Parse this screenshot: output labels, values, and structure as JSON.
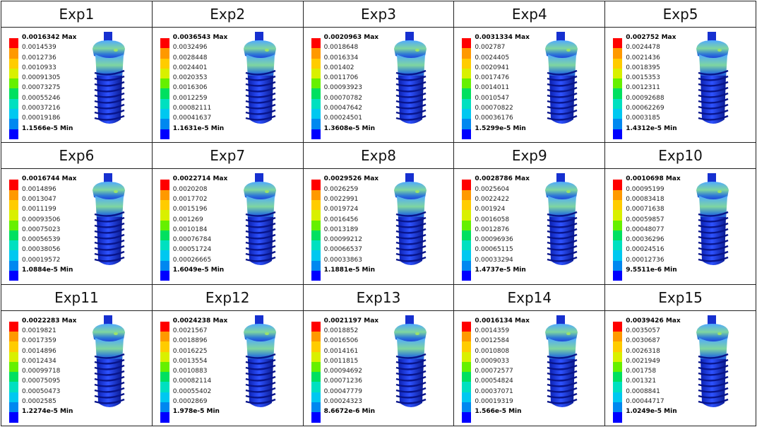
{
  "scale_colors": [
    "#ff0000",
    "#ff9900",
    "#ffcc00",
    "#d9f000",
    "#66f000",
    "#00e060",
    "#00e0c0",
    "#00c8f0",
    "#0088f0",
    "#0000ff"
  ],
  "experiments": [
    {
      "title": "Exp1",
      "max": "0.0016342 Max",
      "min": "1.1566e-5 Min",
      "levels": [
        "0.0014539",
        "0.0012736",
        "0.0010933",
        "0.00091305",
        "0.00073275",
        "0.00055246",
        "0.00037216",
        "0.00019186"
      ]
    },
    {
      "title": "Exp2",
      "max": "0.0036543 Max",
      "min": "1.1631e-5 Min",
      "levels": [
        "0.0032496",
        "0.0028448",
        "0.0024401",
        "0.0020353",
        "0.0016306",
        "0.0012259",
        "0.00082111",
        "0.00041637"
      ]
    },
    {
      "title": "Exp3",
      "max": "0.0020963 Max",
      "min": "1.3608e-5 Min",
      "levels": [
        "0.0018648",
        "0.0016334",
        "0.001402",
        "0.0011706",
        "0.00093923",
        "0.00070782",
        "0.00047642",
        "0.00024501"
      ]
    },
    {
      "title": "Exp4",
      "max": "0.0031334 Max",
      "min": "1.5299e-5 Min",
      "levels": [
        "0.002787",
        "0.0024405",
        "0.0020941",
        "0.0017476",
        "0.0014011",
        "0.0010547",
        "0.00070822",
        "0.00036176"
      ]
    },
    {
      "title": "Exp5",
      "max": "0.002752 Max",
      "min": "1.4312e-5 Min",
      "levels": [
        "0.0024478",
        "0.0021436",
        "0.0018395",
        "0.0015353",
        "0.0012311",
        "0.00092688",
        "0.00062269",
        "0.0003185"
      ]
    },
    {
      "title": "Exp6",
      "max": "0.0016744 Max",
      "min": "1.0884e-5 Min",
      "levels": [
        "0.0014896",
        "0.0013047",
        "0.0011199",
        "0.00093506",
        "0.00075023",
        "0.00056539",
        "0.00038056",
        "0.00019572"
      ]
    },
    {
      "title": "Exp7",
      "max": "0.0022714 Max",
      "min": "1.6049e-5 Min",
      "levels": [
        "0.0020208",
        "0.0017702",
        "0.0015196",
        "0.001269",
        "0.0010184",
        "0.00076784",
        "0.00051724",
        "0.00026665"
      ]
    },
    {
      "title": "Exp8",
      "max": "0.0029526 Max",
      "min": "1.1881e-5 Min",
      "levels": [
        "0.0026259",
        "0.0022991",
        "0.0019724",
        "0.0016456",
        "0.0013189",
        "0.00099212",
        "0.00066537",
        "0.00033863"
      ]
    },
    {
      "title": "Exp9",
      "max": "0.0028786 Max",
      "min": "1.4737e-5 Min",
      "levels": [
        "0.0025604",
        "0.0022422",
        "0.001924",
        "0.0016058",
        "0.0012876",
        "0.00096936",
        "0.00065115",
        "0.00033294"
      ]
    },
    {
      "title": "Exp10",
      "max": "0.0010698 Max",
      "min": "9.5511e-6 Min",
      "levels": [
        "0.00095199",
        "0.00083418",
        "0.00071638",
        "0.00059857",
        "0.00048077",
        "0.00036296",
        "0.00024516",
        "0.00012736"
      ]
    },
    {
      "title": "Exp11",
      "max": "0.0022283 Max",
      "min": "1.2274e-5 Min",
      "levels": [
        "0.0019821",
        "0.0017359",
        "0.0014896",
        "0.0012434",
        "0.00099718",
        "0.00075095",
        "0.00050473",
        "0.0002585"
      ]
    },
    {
      "title": "Exp12",
      "max": "0.0024238 Max",
      "min": "1.978e-5 Min",
      "levels": [
        "0.0021567",
        "0.0018896",
        "0.0016225",
        "0.0013554",
        "0.0010883",
        "0.00082114",
        "0.00055402",
        "0.0002869"
      ]
    },
    {
      "title": "Exp13",
      "max": "0.0021197 Max",
      "min": "8.6672e-6 Min",
      "levels": [
        "0.0018852",
        "0.0016506",
        "0.0014161",
        "0.0011815",
        "0.00094692",
        "0.00071236",
        "0.00047779",
        "0.00024323"
      ]
    },
    {
      "title": "Exp14",
      "max": "0.0016134 Max",
      "min": "1.566e-5 Min",
      "levels": [
        "0.0014359",
        "0.0012584",
        "0.0010808",
        "0.0009033",
        "0.00072577",
        "0.00054824",
        "0.00037071",
        "0.00019319"
      ]
    },
    {
      "title": "Exp15",
      "max": "0.0039426 Max",
      "min": "1.0249e-5 Min",
      "levels": [
        "0.0035057",
        "0.0030687",
        "0.0026318",
        "0.0021949",
        "0.001758",
        "0.001321",
        "0.0008841",
        "0.00044717"
      ]
    }
  ]
}
